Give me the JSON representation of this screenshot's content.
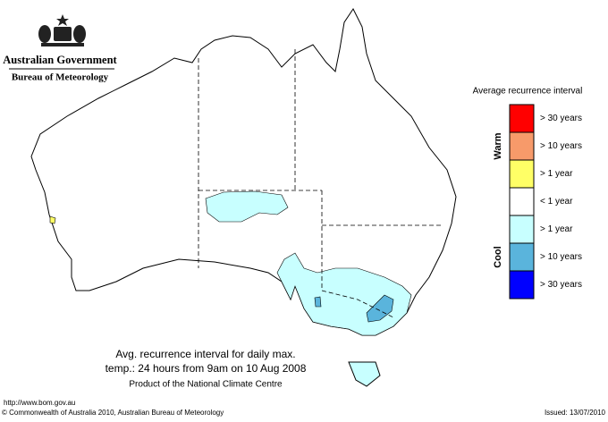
{
  "header": {
    "government": "Australian Government",
    "bureau": "Bureau of Meteorology"
  },
  "legend": {
    "title": "Average recurrence interval",
    "groups": [
      {
        "label": "Warm"
      },
      {
        "label": "Cool"
      }
    ],
    "items": [
      {
        "label": "> 30 years",
        "color": "#ff0000",
        "group": "Warm"
      },
      {
        "label": "> 10 years",
        "color": "#f79a6a",
        "group": "Warm"
      },
      {
        "label": "> 1 year",
        "color": "#ffff66",
        "group": "Warm"
      },
      {
        "label": "< 1 year",
        "color": "#ffffff"
      },
      {
        "label": "> 1 year",
        "color": "#c8ffff",
        "group": "Cool"
      },
      {
        "label": "> 10 years",
        "color": "#5ab4dc",
        "group": "Cool"
      },
      {
        "label": "> 30 years",
        "color": "#0000ff",
        "group": "Cool"
      }
    ]
  },
  "caption": {
    "line1": "Avg. recurrence interval for daily max.",
    "line2": "temp.: 24 hours from 9am on 10 Aug 2008",
    "line3": "Product of the National Climate Centre"
  },
  "footer": {
    "url": "http://www.bom.gov.au",
    "copyright": "© Commonwealth of Australia 2010, Australian Bureau of Meteorology",
    "issued": "Issued: 13/07/2010"
  }
}
